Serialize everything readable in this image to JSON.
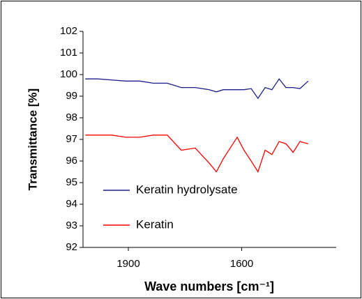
{
  "chart_data": {
    "type": "line",
    "xlabel": "Wave numbers [cm⁻¹]",
    "ylabel": "Transmittance [%]",
    "x": [
      2014,
      1981,
      1944,
      1907,
      1870,
      1834,
      1797,
      1760,
      1723,
      1686,
      1667,
      1649,
      1612,
      1594,
      1575,
      1557,
      1538,
      1520,
      1501,
      1483,
      1464,
      1446,
      1424
    ],
    "series": [
      {
        "name": "Keratin hydrolysate",
        "color": "#1c1c8c",
        "values": [
          99.8,
          99.8,
          99.75,
          99.7,
          99.7,
          99.6,
          99.6,
          99.4,
          99.4,
          99.3,
          99.2,
          99.3,
          99.3,
          99.3,
          99.35,
          98.9,
          99.4,
          99.3,
          99.8,
          99.4,
          99.4,
          99.35,
          99.7
        ]
      },
      {
        "name": "Keratin",
        "color": "#ff0000",
        "values": [
          97.2,
          97.2,
          97.2,
          97.1,
          97.1,
          97.2,
          97.2,
          96.5,
          96.6,
          95.9,
          95.5,
          96.1,
          97.1,
          96.5,
          96.0,
          95.5,
          96.5,
          96.3,
          96.9,
          96.8,
          96.4,
          96.9,
          96.8
        ]
      }
    ],
    "xlim": [
      2020,
      1350
    ],
    "xticks": [
      1900,
      1600
    ],
    "ylim": [
      92,
      102
    ],
    "yticks": [
      92,
      93,
      94,
      95,
      96,
      97,
      98,
      99,
      100,
      101,
      102
    ],
    "legend": "lower left"
  }
}
